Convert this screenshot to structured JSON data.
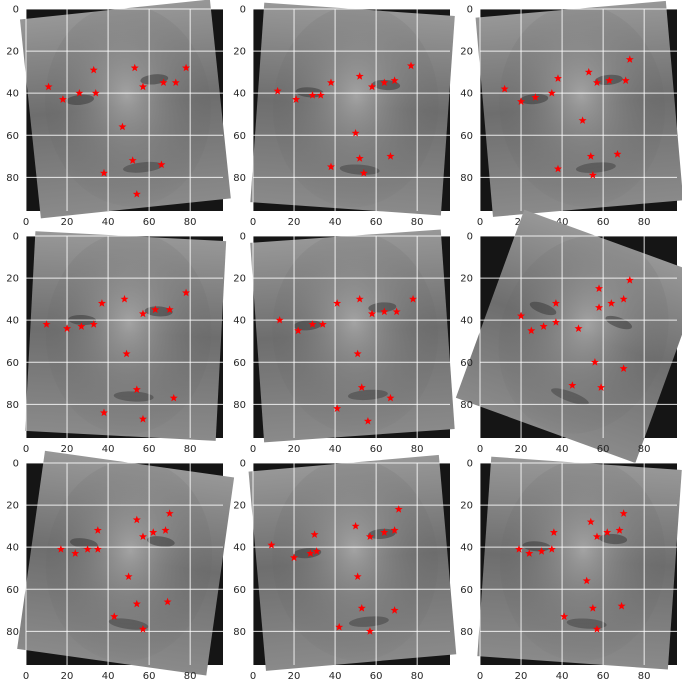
{
  "figure": {
    "background": "#ffffff",
    "grid_color": "#ffffff",
    "marker_color": "#ff0000",
    "marker": "star"
  },
  "chart_data": [
    {
      "type": "scatter",
      "panel": 1,
      "xlim": [
        0,
        96
      ],
      "ylim": [
        96,
        0
      ],
      "xticks": [
        0,
        20,
        40,
        60,
        80
      ],
      "yticks": [
        0,
        20,
        40,
        60,
        80
      ],
      "grid": true,
      "points": [
        {
          "x": 11,
          "y": 37
        },
        {
          "x": 18,
          "y": 43
        },
        {
          "x": 26,
          "y": 40
        },
        {
          "x": 33,
          "y": 29
        },
        {
          "x": 34,
          "y": 40
        },
        {
          "x": 47,
          "y": 56
        },
        {
          "x": 38,
          "y": 78
        },
        {
          "x": 52,
          "y": 72
        },
        {
          "x": 53,
          "y": 28
        },
        {
          "x": 57,
          "y": 37
        },
        {
          "x": 67,
          "y": 35
        },
        {
          "x": 73,
          "y": 35
        },
        {
          "x": 78,
          "y": 28
        },
        {
          "x": 66,
          "y": 74
        },
        {
          "x": 54,
          "y": 88
        }
      ]
    },
    {
      "type": "scatter",
      "panel": 2,
      "xlim": [
        0,
        96
      ],
      "ylim": [
        96,
        0
      ],
      "xticks": [
        0,
        20,
        40,
        60,
        80
      ],
      "yticks": [
        0,
        20,
        40,
        60,
        80
      ],
      "grid": true,
      "points": [
        {
          "x": 12,
          "y": 39
        },
        {
          "x": 21,
          "y": 43
        },
        {
          "x": 29,
          "y": 41
        },
        {
          "x": 33,
          "y": 41
        },
        {
          "x": 38,
          "y": 35
        },
        {
          "x": 52,
          "y": 32
        },
        {
          "x": 58,
          "y": 37
        },
        {
          "x": 64,
          "y": 35
        },
        {
          "x": 69,
          "y": 34
        },
        {
          "x": 77,
          "y": 27
        },
        {
          "x": 50,
          "y": 59
        },
        {
          "x": 38,
          "y": 75
        },
        {
          "x": 52,
          "y": 71
        },
        {
          "x": 67,
          "y": 70
        },
        {
          "x": 54,
          "y": 78
        }
      ]
    },
    {
      "type": "scatter",
      "panel": 3,
      "xlim": [
        0,
        96
      ],
      "ylim": [
        96,
        0
      ],
      "xticks": [
        0,
        20,
        40,
        60,
        80
      ],
      "yticks": [
        0,
        20,
        40,
        60,
        80
      ],
      "grid": true,
      "points": [
        {
          "x": 12,
          "y": 38
        },
        {
          "x": 20,
          "y": 44
        },
        {
          "x": 27,
          "y": 42
        },
        {
          "x": 35,
          "y": 40
        },
        {
          "x": 38,
          "y": 33
        },
        {
          "x": 53,
          "y": 30
        },
        {
          "x": 57,
          "y": 35
        },
        {
          "x": 63,
          "y": 34
        },
        {
          "x": 71,
          "y": 34
        },
        {
          "x": 73,
          "y": 24
        },
        {
          "x": 50,
          "y": 53
        },
        {
          "x": 38,
          "y": 76
        },
        {
          "x": 54,
          "y": 70
        },
        {
          "x": 67,
          "y": 69
        },
        {
          "x": 55,
          "y": 79
        }
      ]
    },
    {
      "type": "scatter",
      "panel": 4,
      "xlim": [
        0,
        96
      ],
      "ylim": [
        96,
        0
      ],
      "xticks": [
        0,
        20,
        40,
        60,
        80
      ],
      "yticks": [
        0,
        20,
        40,
        60,
        80
      ],
      "grid": true,
      "points": [
        {
          "x": 10,
          "y": 42
        },
        {
          "x": 20,
          "y": 44
        },
        {
          "x": 27,
          "y": 43
        },
        {
          "x": 33,
          "y": 42
        },
        {
          "x": 37,
          "y": 32
        },
        {
          "x": 48,
          "y": 30
        },
        {
          "x": 57,
          "y": 37
        },
        {
          "x": 63,
          "y": 35
        },
        {
          "x": 70,
          "y": 35
        },
        {
          "x": 78,
          "y": 27
        },
        {
          "x": 49,
          "y": 56
        },
        {
          "x": 38,
          "y": 84
        },
        {
          "x": 54,
          "y": 73
        },
        {
          "x": 72,
          "y": 77
        },
        {
          "x": 57,
          "y": 87
        }
      ]
    },
    {
      "type": "scatter",
      "panel": 5,
      "xlim": [
        0,
        96
      ],
      "ylim": [
        96,
        0
      ],
      "xticks": [
        0,
        20,
        40,
        60,
        80
      ],
      "yticks": [
        0,
        20,
        40,
        60,
        80
      ],
      "grid": true,
      "points": [
        {
          "x": 13,
          "y": 40
        },
        {
          "x": 22,
          "y": 45
        },
        {
          "x": 29,
          "y": 42
        },
        {
          "x": 34,
          "y": 42
        },
        {
          "x": 41,
          "y": 32
        },
        {
          "x": 52,
          "y": 30
        },
        {
          "x": 58,
          "y": 37
        },
        {
          "x": 64,
          "y": 36
        },
        {
          "x": 70,
          "y": 36
        },
        {
          "x": 78,
          "y": 30
        },
        {
          "x": 51,
          "y": 56
        },
        {
          "x": 41,
          "y": 82
        },
        {
          "x": 53,
          "y": 72
        },
        {
          "x": 67,
          "y": 77
        },
        {
          "x": 56,
          "y": 88
        }
      ]
    },
    {
      "type": "scatter",
      "panel": 6,
      "xlim": [
        0,
        96
      ],
      "ylim": [
        96,
        0
      ],
      "xticks": [
        0,
        20,
        40,
        60,
        80
      ],
      "yticks": [
        0,
        20,
        40,
        60,
        80
      ],
      "grid": true,
      "points": [
        {
          "x": 20,
          "y": 38
        },
        {
          "x": 25,
          "y": 45
        },
        {
          "x": 31,
          "y": 43
        },
        {
          "x": 37,
          "y": 41
        },
        {
          "x": 37,
          "y": 32
        },
        {
          "x": 58,
          "y": 25
        },
        {
          "x": 58,
          "y": 34
        },
        {
          "x": 64,
          "y": 32
        },
        {
          "x": 70,
          "y": 30
        },
        {
          "x": 73,
          "y": 21
        },
        {
          "x": 48,
          "y": 44
        },
        {
          "x": 45,
          "y": 71
        },
        {
          "x": 56,
          "y": 60
        },
        {
          "x": 70,
          "y": 63
        },
        {
          "x": 59,
          "y": 72
        }
      ]
    },
    {
      "type": "scatter",
      "panel": 7,
      "xlim": [
        0,
        96
      ],
      "ylim": [
        96,
        0
      ],
      "xticks": [
        0,
        20,
        40,
        60,
        80
      ],
      "yticks": [
        0,
        20,
        40,
        60,
        80
      ],
      "grid": true,
      "points": [
        {
          "x": 17,
          "y": 41
        },
        {
          "x": 24,
          "y": 43
        },
        {
          "x": 30,
          "y": 41
        },
        {
          "x": 35,
          "y": 41
        },
        {
          "x": 35,
          "y": 32
        },
        {
          "x": 54,
          "y": 27
        },
        {
          "x": 57,
          "y": 35
        },
        {
          "x": 62,
          "y": 33
        },
        {
          "x": 68,
          "y": 32
        },
        {
          "x": 70,
          "y": 24
        },
        {
          "x": 50,
          "y": 54
        },
        {
          "x": 43,
          "y": 73
        },
        {
          "x": 54,
          "y": 67
        },
        {
          "x": 69,
          "y": 66
        },
        {
          "x": 57,
          "y": 79
        }
      ]
    },
    {
      "type": "scatter",
      "panel": 8,
      "xlim": [
        0,
        96
      ],
      "ylim": [
        96,
        0
      ],
      "xticks": [
        0,
        20,
        40,
        60,
        80
      ],
      "yticks": [
        0,
        20,
        40,
        60,
        80
      ],
      "grid": true,
      "points": [
        {
          "x": 9,
          "y": 39
        },
        {
          "x": 20,
          "y": 45
        },
        {
          "x": 28,
          "y": 43
        },
        {
          "x": 31,
          "y": 42
        },
        {
          "x": 30,
          "y": 34
        },
        {
          "x": 50,
          "y": 30
        },
        {
          "x": 57,
          "y": 35
        },
        {
          "x": 64,
          "y": 33
        },
        {
          "x": 69,
          "y": 32
        },
        {
          "x": 71,
          "y": 22
        },
        {
          "x": 51,
          "y": 54
        },
        {
          "x": 42,
          "y": 78
        },
        {
          "x": 53,
          "y": 69
        },
        {
          "x": 69,
          "y": 70
        },
        {
          "x": 57,
          "y": 80
        }
      ]
    },
    {
      "type": "scatter",
      "panel": 9,
      "xlim": [
        0,
        96
      ],
      "ylim": [
        96,
        0
      ],
      "xticks": [
        0,
        20,
        40,
        60,
        80
      ],
      "yticks": [
        0,
        20,
        40,
        60,
        80
      ],
      "grid": true,
      "points": [
        {
          "x": 19,
          "y": 41
        },
        {
          "x": 24,
          "y": 43
        },
        {
          "x": 30,
          "y": 42
        },
        {
          "x": 35,
          "y": 41
        },
        {
          "x": 36,
          "y": 33
        },
        {
          "x": 54,
          "y": 28
        },
        {
          "x": 57,
          "y": 35
        },
        {
          "x": 62,
          "y": 33
        },
        {
          "x": 68,
          "y": 32
        },
        {
          "x": 70,
          "y": 24
        },
        {
          "x": 52,
          "y": 56
        },
        {
          "x": 41,
          "y": 73
        },
        {
          "x": 55,
          "y": 69
        },
        {
          "x": 69,
          "y": 68
        },
        {
          "x": 57,
          "y": 79
        }
      ]
    }
  ]
}
